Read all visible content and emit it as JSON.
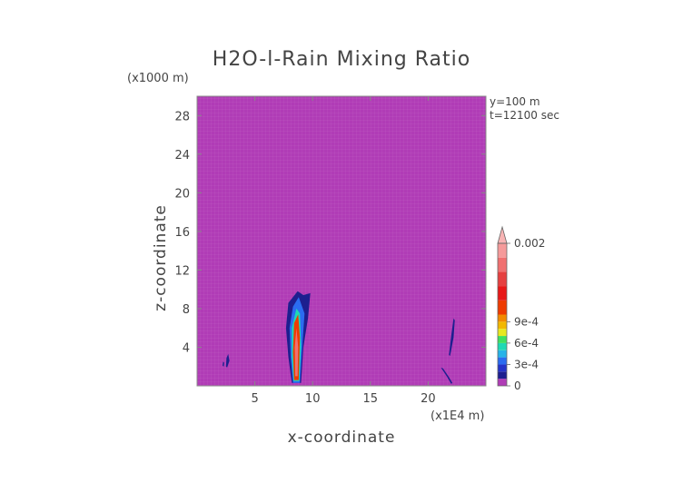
{
  "chart_data": {
    "type": "heatmap",
    "title": "H2O-l-Rain Mixing Ratio",
    "xlabel": "x-coordinate",
    "ylabel": "z-coordinate",
    "x_unit": "(x1E4 m)",
    "y_unit": "(x1000 m)",
    "annotations": [
      "y=100 m",
      "t=12100 sec"
    ],
    "xlim": [
      0,
      25
    ],
    "ylim": [
      0,
      30
    ],
    "x_ticks": [
      5,
      10,
      15,
      20
    ],
    "y_ticks": [
      4,
      8,
      12,
      16,
      20,
      24,
      28
    ],
    "background_value": 0,
    "colorbar": {
      "min": 0,
      "max": 0.002,
      "extend": "max",
      "tick_values": [
        0,
        0.0003,
        0.0006,
        0.0009,
        0.002
      ],
      "tick_labels": [
        "0",
        "3e-4",
        "6e-4",
        "9e-4",
        "0.002"
      ],
      "levels": [
        {
          "value": 0.0,
          "color": "#b03cb6"
        },
        {
          "value": 0.0001,
          "color": "#1d1f8f"
        },
        {
          "value": 0.0002,
          "color": "#2434c8"
        },
        {
          "value": 0.0003,
          "color": "#2b6cf0"
        },
        {
          "value": 0.0004,
          "color": "#27b3e8"
        },
        {
          "value": 0.0005,
          "color": "#1fd9b5"
        },
        {
          "value": 0.0006,
          "color": "#40e060"
        },
        {
          "value": 0.0007,
          "color": "#e8e820"
        },
        {
          "value": 0.0008,
          "color": "#f2b800"
        },
        {
          "value": 0.0009,
          "color": "#f28a00"
        },
        {
          "value": 0.001,
          "color": "#ee3b00"
        },
        {
          "value": 0.0012,
          "color": "#e81818"
        },
        {
          "value": 0.0014,
          "color": "#e64040"
        },
        {
          "value": 0.0016,
          "color": "#f07070"
        },
        {
          "value": 0.0018,
          "color": "#f59a9a"
        },
        {
          "value": 0.002,
          "color": "#f8b4b4"
        }
      ]
    },
    "features": [
      {
        "level": 1,
        "points": [
          [
            8.2,
            0.3
          ],
          [
            7.9,
            3
          ],
          [
            7.7,
            6
          ],
          [
            7.9,
            8.6
          ],
          [
            8.7,
            9.8
          ],
          [
            9.2,
            9.4
          ],
          [
            9.8,
            9.6
          ],
          [
            9.6,
            7
          ],
          [
            9.2,
            4
          ],
          [
            9.0,
            0.3
          ]
        ]
      },
      {
        "level": 3,
        "points": [
          [
            8.3,
            0.3
          ],
          [
            8.1,
            3
          ],
          [
            8.0,
            6
          ],
          [
            8.3,
            8.2
          ],
          [
            8.8,
            9.2
          ],
          [
            9.3,
            7.5
          ],
          [
            9.1,
            4
          ],
          [
            8.9,
            0.3
          ]
        ]
      },
      {
        "level": 5,
        "points": [
          [
            8.35,
            0.5
          ],
          [
            8.2,
            3
          ],
          [
            8.2,
            6
          ],
          [
            8.6,
            8
          ],
          [
            8.9,
            7.5
          ],
          [
            9.0,
            4
          ],
          [
            8.85,
            0.5
          ]
        ]
      },
      {
        "level": 10,
        "points": [
          [
            8.4,
            0.6
          ],
          [
            8.3,
            3.5
          ],
          [
            8.4,
            6.5
          ],
          [
            8.75,
            7.4
          ],
          [
            8.9,
            5
          ],
          [
            8.8,
            0.6
          ]
        ]
      },
      {
        "level": 13,
        "points": [
          [
            8.5,
            1
          ],
          [
            8.45,
            4
          ],
          [
            8.6,
            6
          ],
          [
            8.75,
            4
          ],
          [
            8.7,
            1
          ]
        ]
      },
      {
        "level": 1,
        "points": [
          [
            2.5,
            2.0
          ],
          [
            2.6,
            1.9
          ],
          [
            2.8,
            2.6
          ],
          [
            2.7,
            3.3
          ],
          [
            2.55,
            2.9
          ]
        ]
      },
      {
        "level": 1,
        "points": [
          [
            2.2,
            2.1
          ],
          [
            2.3,
            2.0
          ],
          [
            2.35,
            2.4
          ],
          [
            2.25,
            2.5
          ]
        ]
      },
      {
        "level": 1,
        "points": [
          [
            21.8,
            3.2
          ],
          [
            21.9,
            3.1
          ],
          [
            22.2,
            5
          ],
          [
            22.3,
            6.8
          ],
          [
            22.2,
            7
          ],
          [
            22.0,
            5.2
          ]
        ]
      },
      {
        "level": 1,
        "points": [
          [
            21.1,
            1.9
          ],
          [
            21.3,
            1.8
          ],
          [
            21.8,
            0.9
          ],
          [
            22.1,
            0.3
          ],
          [
            22.0,
            0.2
          ],
          [
            21.6,
            1.0
          ]
        ]
      }
    ]
  }
}
